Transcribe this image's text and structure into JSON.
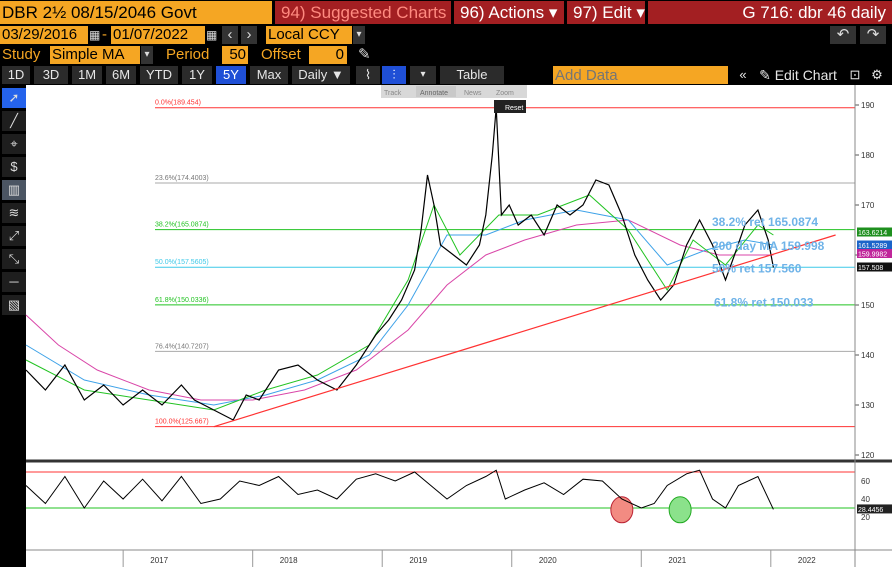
{
  "top": {
    "security": "DBR 2½ 08/15/2046 Govt",
    "suggested": "94) Suggested Charts",
    "actions": "96) Actions",
    "edit": "97) Edit",
    "title": "G 716: dbr 46 daily"
  },
  "dates": {
    "start": "03/29/2016",
    "end": "01/07/2022",
    "currency": "Local CCY"
  },
  "study": {
    "label": "Study",
    "value": "Simple MA",
    "period_label": "Period",
    "period": "50",
    "offset_label": "Offset",
    "offset": "0"
  },
  "range_buttons": [
    "1D",
    "3D",
    "1M",
    "6M",
    "YTD",
    "1Y",
    "5Y",
    "Max"
  ],
  "range_active": "5Y",
  "frequency": "Daily",
  "table_label": "Table",
  "add_data_placeholder": "Add Data",
  "edit_chart": "Edit Chart",
  "mini_toolbar": [
    "Track",
    "Annotate",
    "News",
    "Zoom"
  ],
  "reset": "Reset",
  "colors": {
    "orange": "#f5a623",
    "red": "#a31f22",
    "fib": "#ff3333",
    "ma200": "#d946a8",
    "ma100": "#3ea2e8",
    "ma50": "#22c322",
    "annot": "#6fb3e8"
  },
  "chart_data": {
    "type": "line",
    "y_ticks": [
      120,
      130,
      140,
      150,
      160,
      170,
      180,
      190
    ],
    "x_ticks": [
      "2017",
      "2018",
      "2019",
      "2020",
      "2021",
      "2022"
    ],
    "fib_levels": [
      {
        "label": "0.0%(189.454)",
        "value": 189.454
      },
      {
        "label": "23.6%(174.4003)",
        "value": 174.4003
      },
      {
        "label": "38.2%(165.0874)",
        "value": 165.0874
      },
      {
        "label": "50.0%(157.5605)",
        "value": 157.5605
      },
      {
        "label": "61.8%(150.0336)",
        "value": 150.0336
      },
      {
        "label": "76.4%(140.7207)",
        "value": 140.7207
      },
      {
        "label": "100.0%(125.667)",
        "value": 125.667
      }
    ],
    "annotations": [
      "38.2% ret 165.0874",
      "200 day MA 159.998",
      "50% ret 157.560",
      "61.8% ret 150.033"
    ],
    "right_labels": [
      "163.6214",
      "161.5289",
      "159.9982",
      "157.508"
    ],
    "price_series": [
      [
        2016.25,
        137
      ],
      [
        2016.4,
        133
      ],
      [
        2016.55,
        138
      ],
      [
        2016.7,
        131
      ],
      [
        2016.85,
        134
      ],
      [
        2017.0,
        130
      ],
      [
        2017.15,
        133
      ],
      [
        2017.3,
        130
      ],
      [
        2017.45,
        134
      ],
      [
        2017.55,
        131
      ],
      [
        2017.7,
        129
      ],
      [
        2017.85,
        127
      ],
      [
        2017.95,
        132
      ],
      [
        2018.05,
        131
      ],
      [
        2018.2,
        137
      ],
      [
        2018.35,
        138
      ],
      [
        2018.5,
        135
      ],
      [
        2018.65,
        133
      ],
      [
        2018.8,
        138
      ],
      [
        2018.95,
        144
      ],
      [
        2019.05,
        147
      ],
      [
        2019.15,
        151
      ],
      [
        2019.25,
        157
      ],
      [
        2019.3,
        165
      ],
      [
        2019.35,
        176
      ],
      [
        2019.4,
        170
      ],
      [
        2019.45,
        162
      ],
      [
        2019.55,
        160
      ],
      [
        2019.65,
        158
      ],
      [
        2019.75,
        162
      ],
      [
        2019.8,
        168
      ],
      [
        2019.85,
        180
      ],
      [
        2019.88,
        189.5
      ],
      [
        2019.92,
        168
      ],
      [
        2019.98,
        170
      ],
      [
        2020.05,
        166
      ],
      [
        2020.15,
        168
      ],
      [
        2020.25,
        164
      ],
      [
        2020.35,
        170
      ],
      [
        2020.45,
        168
      ],
      [
        2020.55,
        170
      ],
      [
        2020.65,
        175
      ],
      [
        2020.75,
        174
      ],
      [
        2020.85,
        168
      ],
      [
        2020.95,
        160
      ],
      [
        2021.05,
        155
      ],
      [
        2021.15,
        151
      ],
      [
        2021.25,
        154
      ],
      [
        2021.35,
        162
      ],
      [
        2021.45,
        167
      ],
      [
        2021.55,
        162
      ],
      [
        2021.65,
        155
      ],
      [
        2021.72,
        160
      ],
      [
        2021.8,
        166
      ],
      [
        2021.9,
        169
      ],
      [
        2021.98,
        163
      ],
      [
        2022.02,
        157.5
      ]
    ],
    "ma200_series": [
      [
        2016.25,
        148
      ],
      [
        2016.5,
        142
      ],
      [
        2016.8,
        137
      ],
      [
        2017.2,
        133
      ],
      [
        2017.6,
        131
      ],
      [
        2018.0,
        131
      ],
      [
        2018.4,
        133
      ],
      [
        2018.8,
        137
      ],
      [
        2019.2,
        145
      ],
      [
        2019.5,
        154
      ],
      [
        2019.8,
        160
      ],
      [
        2020.1,
        163
      ],
      [
        2020.5,
        166
      ],
      [
        2020.9,
        167
      ],
      [
        2021.3,
        162
      ],
      [
        2021.6,
        160
      ],
      [
        2021.9,
        160
      ],
      [
        2022.02,
        160
      ]
    ],
    "ma100_series": [
      [
        2016.25,
        142
      ],
      [
        2016.7,
        135
      ],
      [
        2017.2,
        132
      ],
      [
        2017.7,
        130
      ],
      [
        2018.1,
        132
      ],
      [
        2018.5,
        135
      ],
      [
        2018.9,
        140
      ],
      [
        2019.2,
        150
      ],
      [
        2019.5,
        164
      ],
      [
        2019.8,
        164
      ],
      [
        2020.1,
        167
      ],
      [
        2020.5,
        169
      ],
      [
        2020.9,
        167
      ],
      [
        2021.2,
        158
      ],
      [
        2021.5,
        161
      ],
      [
        2021.8,
        163
      ],
      [
        2022.02,
        162
      ]
    ],
    "ma50_series": [
      [
        2016.25,
        139
      ],
      [
        2016.7,
        133
      ],
      [
        2017.2,
        131
      ],
      [
        2017.7,
        129
      ],
      [
        2018.1,
        133
      ],
      [
        2018.5,
        136
      ],
      [
        2018.9,
        142
      ],
      [
        2019.2,
        155
      ],
      [
        2019.4,
        170
      ],
      [
        2019.6,
        160
      ],
      [
        2019.9,
        168
      ],
      [
        2020.2,
        168
      ],
      [
        2020.6,
        172
      ],
      [
        2020.9,
        165
      ],
      [
        2021.2,
        153
      ],
      [
        2021.4,
        163
      ],
      [
        2021.65,
        158
      ],
      [
        2021.9,
        166
      ],
      [
        2022.02,
        164
      ]
    ],
    "trendline": [
      [
        2017.7,
        125.667
      ],
      [
        2022.5,
        164
      ]
    ],
    "rsi": {
      "y_ticks": [
        20,
        40,
        60
      ],
      "levels": [
        70,
        30
      ],
      "value_label": "28.4456",
      "series": [
        [
          2016.25,
          55
        ],
        [
          2016.4,
          35
        ],
        [
          2016.55,
          65
        ],
        [
          2016.7,
          30
        ],
        [
          2016.85,
          60
        ],
        [
          2017.0,
          40
        ],
        [
          2017.15,
          62
        ],
        [
          2017.3,
          38
        ],
        [
          2017.45,
          65
        ],
        [
          2017.6,
          35
        ],
        [
          2017.75,
          40
        ],
        [
          2017.9,
          60
        ],
        [
          2018.05,
          55
        ],
        [
          2018.2,
          65
        ],
        [
          2018.35,
          45
        ],
        [
          2018.5,
          50
        ],
        [
          2018.65,
          40
        ],
        [
          2018.8,
          62
        ],
        [
          2018.95,
          68
        ],
        [
          2019.1,
          60
        ],
        [
          2019.25,
          70
        ],
        [
          2019.35,
          58
        ],
        [
          2019.5,
          40
        ],
        [
          2019.65,
          55
        ],
        [
          2019.8,
          65
        ],
        [
          2019.88,
          72
        ],
        [
          2019.95,
          40
        ],
        [
          2020.1,
          50
        ],
        [
          2020.25,
          58
        ],
        [
          2020.4,
          45
        ],
        [
          2020.55,
          62
        ],
        [
          2020.7,
          60
        ],
        [
          2020.85,
          40
        ],
        [
          2021.0,
          30
        ],
        [
          2021.1,
          35
        ],
        [
          2021.2,
          55
        ],
        [
          2021.35,
          68
        ],
        [
          2021.45,
          72
        ],
        [
          2021.55,
          40
        ],
        [
          2021.65,
          30
        ],
        [
          2021.75,
          55
        ],
        [
          2021.9,
          65
        ],
        [
          2022.02,
          28.4
        ]
      ],
      "circles": [
        {
          "x": 2020.85,
          "color": "red"
        },
        {
          "x": 2021.3,
          "color": "green"
        }
      ]
    }
  }
}
